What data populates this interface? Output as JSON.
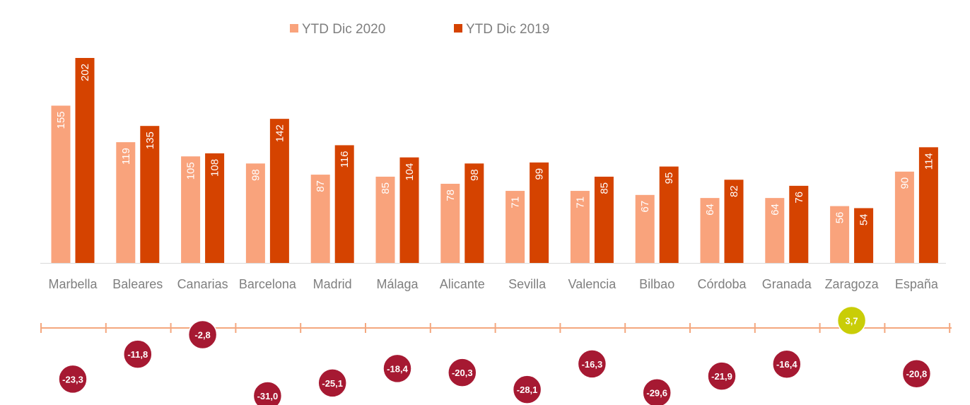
{
  "colors": {
    "series_2020": "#f9a37c",
    "series_2019": "#d54300",
    "axis": "#d9d9d9",
    "timeline": "#f4a77e",
    "bubble_negative": "#a61932",
    "bubble_positive": "#c9cd07",
    "text_gray": "#7f7f7f"
  },
  "chart_data": {
    "type": "bar",
    "categories": [
      "Marbella",
      "Baleares",
      "Canarias",
      "Barcelona",
      "Madrid",
      "Málaga",
      "Alicante",
      "Sevilla",
      "Valencia",
      "Bilbao",
      "Córdoba",
      "Granada",
      "Zaragoza",
      "España"
    ],
    "series": [
      {
        "name": "YTD  Dic 2020",
        "values": [
          155,
          119,
          105,
          98,
          87,
          85,
          78,
          71,
          71,
          67,
          64,
          64,
          56,
          90
        ]
      },
      {
        "name": "YTD  Dic 2019",
        "values": [
          202,
          135,
          108,
          142,
          116,
          104,
          98,
          99,
          85,
          95,
          82,
          76,
          54,
          114
        ]
      }
    ],
    "variation": {
      "values": [
        -23.3,
        -11.8,
        -2.8,
        -31.0,
        -25.1,
        -18.4,
        -20.3,
        -28.1,
        -16.3,
        -29.6,
        -21.9,
        -16.4,
        3.7,
        -20.8
      ],
      "labels": [
        "-23,3",
        "-11,8",
        "-2,8",
        "-31,0",
        "-25,1",
        "-18,4",
        "-20,3",
        "-28,1",
        "-16,3",
        "-29,6",
        "-21,9",
        "-16,4",
        "3,7",
        "-20,8"
      ]
    },
    "legend_position": "top-center",
    "grid": false,
    "ylim": [
      0,
      202
    ]
  }
}
